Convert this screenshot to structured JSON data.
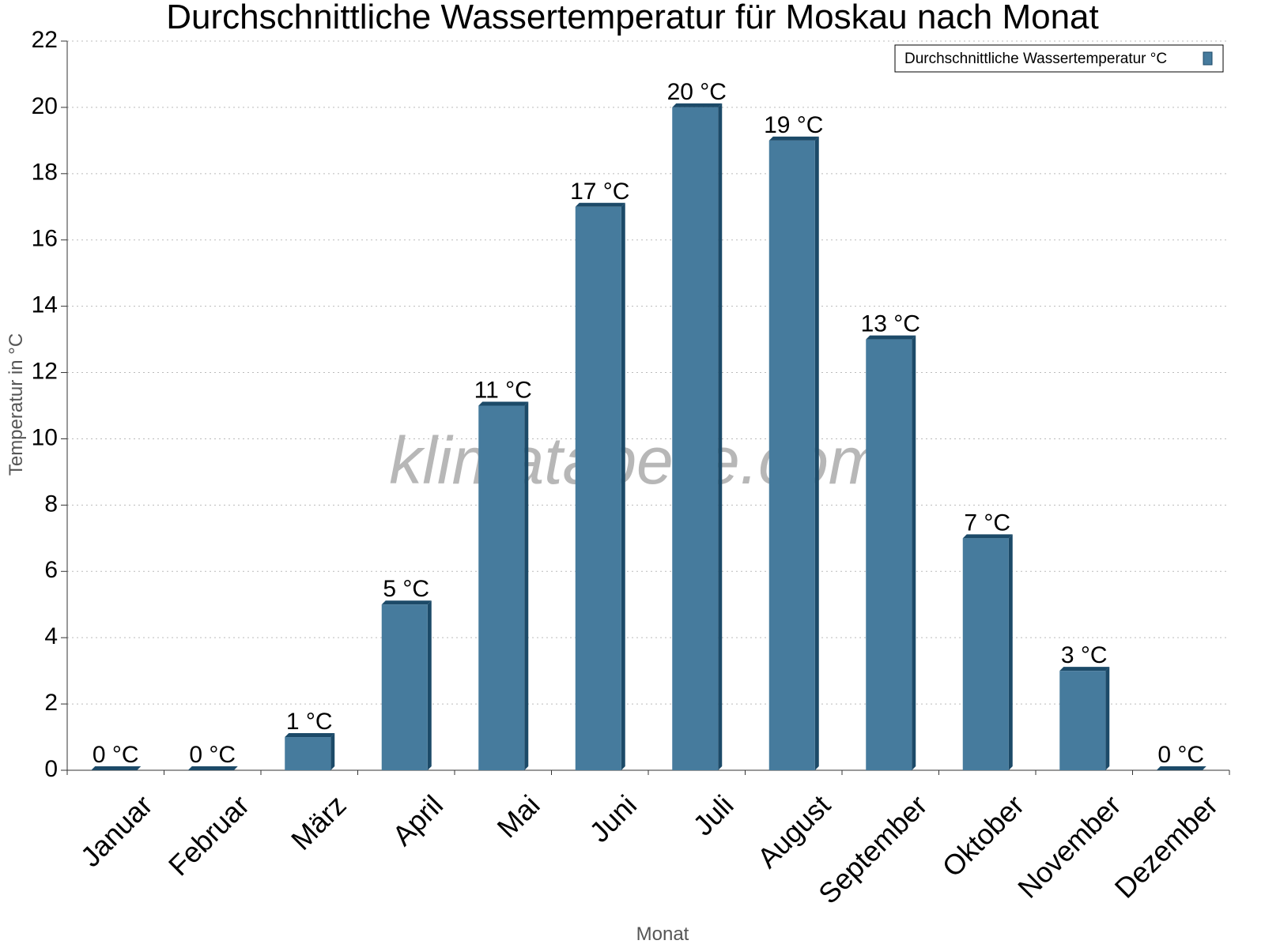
{
  "chart_data": {
    "type": "bar",
    "title": "Durchschnittliche Wassertemperatur für Moskau nach Monat",
    "x_label": "Monat",
    "y_label": "Temperatur in °C",
    "watermark": "klimatabelle.com",
    "categories": [
      "Januar",
      "Februar",
      "März",
      "April",
      "Mai",
      "Juni",
      "Juli",
      "August",
      "September",
      "Oktober",
      "November",
      "Dezember"
    ],
    "series": [
      {
        "name": "Durchschnittliche Wassertemperatur °C",
        "color": "#467b9d",
        "values": [
          0,
          0,
          1,
          5,
          11,
          17,
          20,
          19,
          13,
          7,
          3,
          0
        ],
        "value_labels": [
          "0 °C",
          "0 °C",
          "1 °C",
          "5 °C",
          "11 °C",
          "17 °C",
          "20 °C",
          "19 °C",
          "13 °C",
          "7 °C",
          "3 °C",
          "0 °C"
        ]
      }
    ],
    "ylim": [
      0,
      22
    ],
    "yticks": [
      0,
      2,
      4,
      6,
      8,
      10,
      12,
      14,
      16,
      18,
      20,
      22
    ],
    "grid": true,
    "legend": "top-right"
  }
}
